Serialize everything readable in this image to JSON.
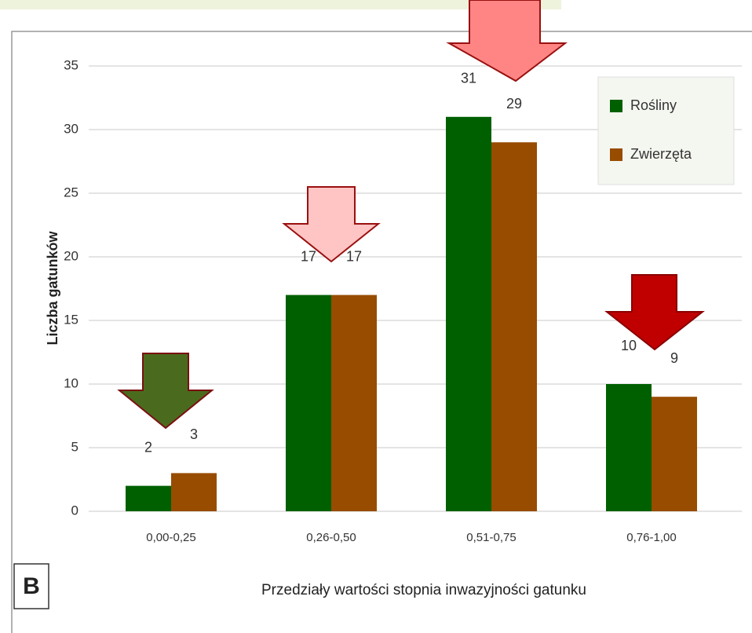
{
  "chart_data": {
    "type": "bar",
    "panel_label": "B",
    "xlabel": "Przedziały wartości stopnia inwazyjności gatunku",
    "ylabel": "Liczba gatunków",
    "categories": [
      "0,00-0,25",
      "0,26-0,50",
      "0,51-0,75",
      "0,76-1,00"
    ],
    "series": [
      {
        "name": "Rośliny",
        "color": "#006000",
        "values": [
          2,
          17,
          31,
          10
        ]
      },
      {
        "name": "Zwierzęta",
        "color": "#974c00",
        "values": [
          3,
          17,
          29,
          9
        ]
      }
    ],
    "ylim": [
      0,
      35
    ],
    "yticks": [
      0,
      5,
      10,
      15,
      20,
      25,
      30,
      35
    ],
    "grid": true,
    "legend": "upper right"
  }
}
